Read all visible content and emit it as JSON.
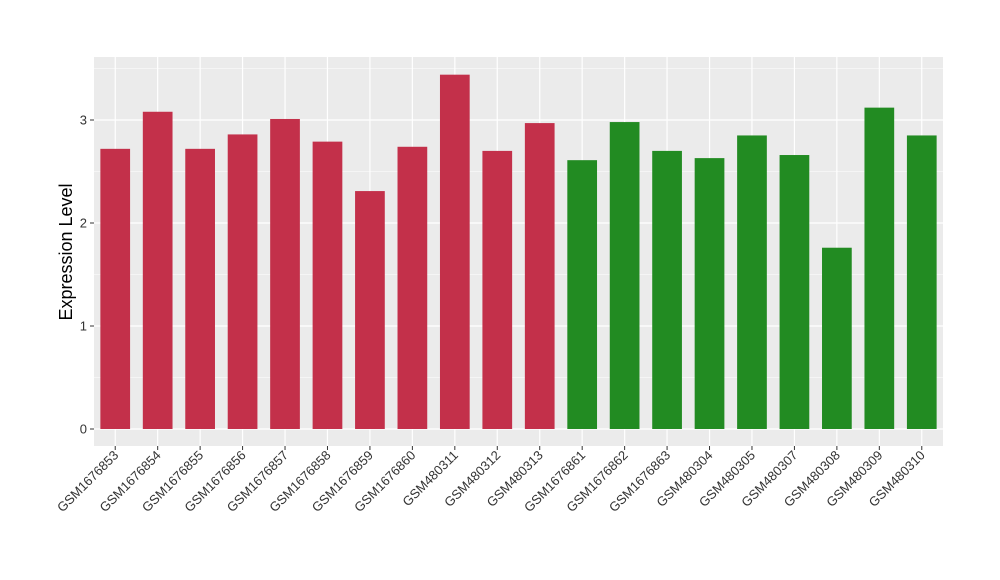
{
  "chart_data": {
    "type": "bar",
    "title": "",
    "xlabel": "",
    "ylabel": "Expression Level",
    "ylim": [
      0,
      3.5
    ],
    "yticks": [
      0,
      1,
      2,
      3
    ],
    "grid": true,
    "categories": [
      "GSM1676853",
      "GSM1676854",
      "GSM1676855",
      "GSM1676856",
      "GSM1676857",
      "GSM1676858",
      "GSM1676859",
      "GSM1676860",
      "GSM480311",
      "GSM480312",
      "GSM480313",
      "GSM1676861",
      "GSM1676862",
      "GSM1676863",
      "GSM480304",
      "GSM480305",
      "GSM480307",
      "GSM480308",
      "GSM480309",
      "GSM480310"
    ],
    "values": [
      2.72,
      3.08,
      2.72,
      2.86,
      3.01,
      2.79,
      2.31,
      2.74,
      3.44,
      2.7,
      2.97,
      2.61,
      2.98,
      2.7,
      2.63,
      2.85,
      2.66,
      1.76,
      3.12,
      2.85
    ],
    "bar_colors": [
      "#c3304a",
      "#c3304a",
      "#c3304a",
      "#c3304a",
      "#c3304a",
      "#c3304a",
      "#c3304a",
      "#c3304a",
      "#c3304a",
      "#c3304a",
      "#c3304a",
      "#228b22",
      "#228b22",
      "#228b22",
      "#228b22",
      "#228b22",
      "#228b22",
      "#228b22",
      "#228b22",
      "#228b22"
    ]
  },
  "colors": {
    "panel_background": "#ebebeb",
    "grid_line": "#ffffff"
  }
}
